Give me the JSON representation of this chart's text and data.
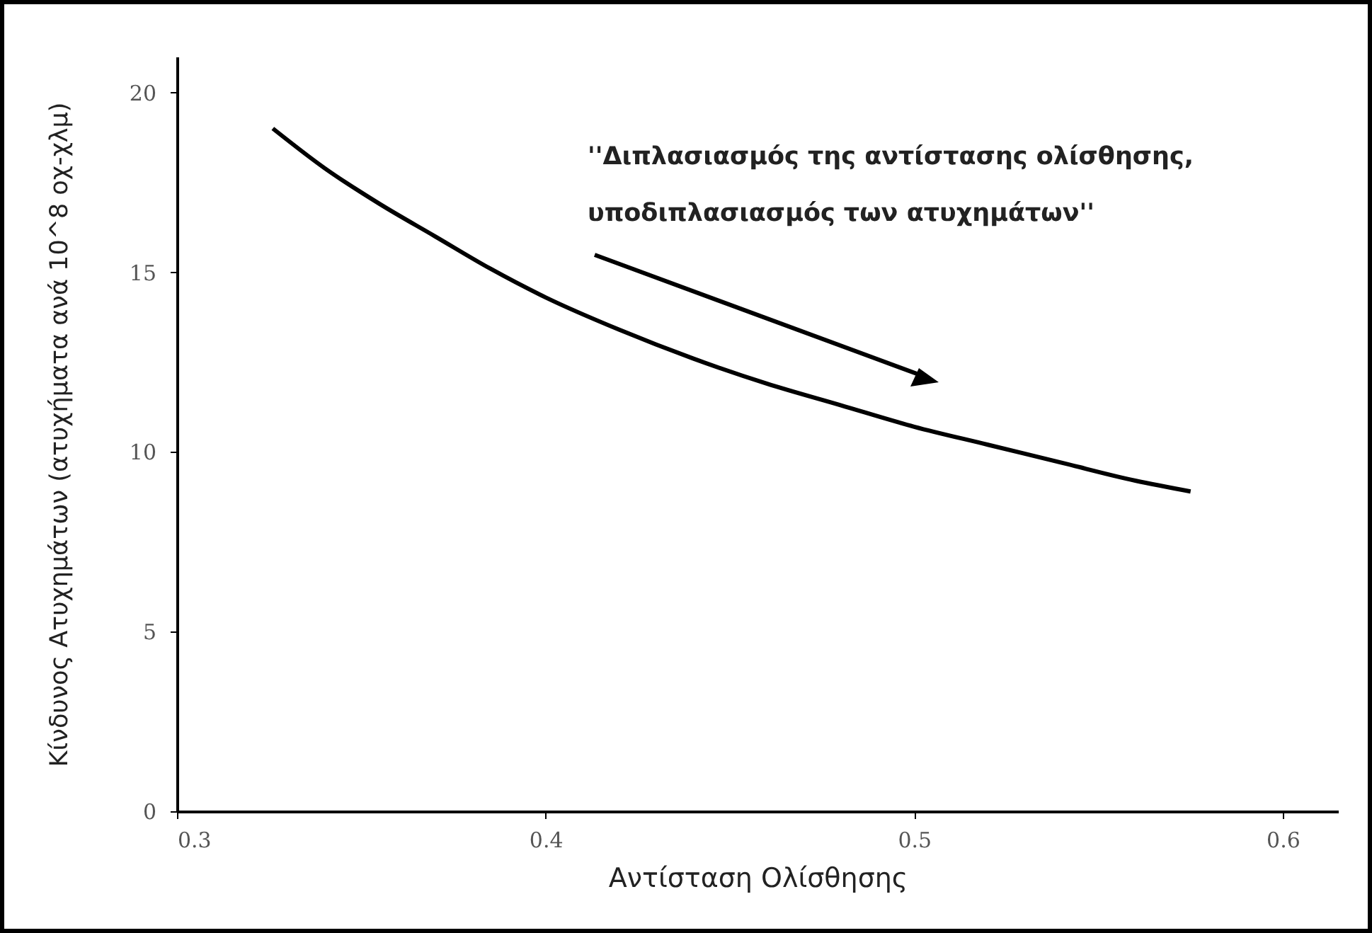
{
  "chart_data": {
    "type": "line",
    "xlabel": "Αντίσταση Ολίσθησης",
    "ylabel": "Κίνδυνος Ατυχημάτων (ατυχήματα ανά 10^8 οχ-χλμ)",
    "annotations": [
      "''Διπλασιασμός της αντίστασης ολίσθησης,\nυποδιπλασιασμός των ατυχημάτων''"
    ],
    "series": [
      {
        "color": "#000000",
        "x": [
          0.326,
          0.34,
          0.355,
          0.37,
          0.385,
          0.4,
          0.42,
          0.44,
          0.46,
          0.48,
          0.5,
          0.52,
          0.54,
          0.56,
          0.575
        ],
        "values": [
          19.0,
          17.9,
          16.9,
          16.0,
          15.1,
          14.3,
          13.4,
          12.6,
          11.9,
          11.3,
          10.7,
          10.2,
          9.7,
          9.2,
          8.9
        ]
      }
    ],
    "xlim": [
      0.3,
      0.615
    ],
    "ylim": [
      0,
      21
    ],
    "xticks": [
      0.3,
      0.4,
      0.5,
      0.6
    ],
    "yticks": [
      0,
      5,
      10,
      15,
      20
    ],
    "grid": false,
    "legend": false,
    "marker": "none",
    "line_style": "solid"
  }
}
